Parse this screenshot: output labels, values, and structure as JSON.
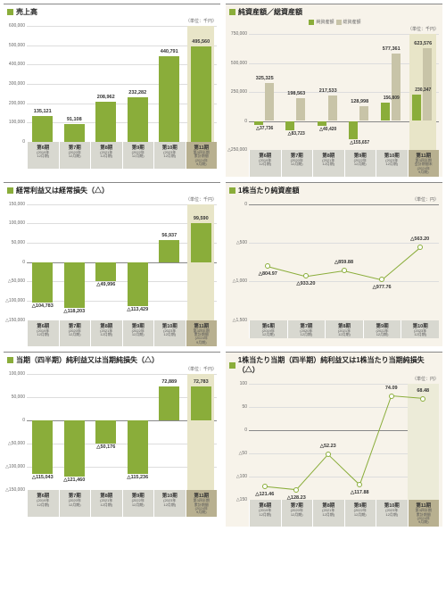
{
  "unit_label": "（単位：千円）",
  "unit_yen": "（単位：円）",
  "colors": {
    "bar": "#8aad3a",
    "bar_light": "#c8c4a8",
    "accent": "#b0a56a",
    "grid": "#d0d0d0",
    "text": "#333",
    "hl_bg": "#ecebd8"
  },
  "periods": [
    {
      "main": "第6期",
      "sub": "(2019年\n12月期)"
    },
    {
      "main": "第7期",
      "sub": "(2020年\n12月期)"
    },
    {
      "main": "第8期",
      "sub": "(2021年\n12月期)"
    },
    {
      "main": "第9期",
      "sub": "(2022年\n12月期)"
    },
    {
      "main": "第10期",
      "sub": "(2023年\n12月期)"
    },
    {
      "main": "第11期",
      "sub": "第3四半期\n累計期間\n(2024年\n9月期)"
    }
  ],
  "periods5": [
    {
      "main": "第6期",
      "sub": "(2019年\n12月期)"
    },
    {
      "main": "第7期",
      "sub": "(2020年\n12月期)"
    },
    {
      "main": "第8期",
      "sub": "(2021年\n12月期)"
    },
    {
      "main": "第9期",
      "sub": "(2022年\n12月期)"
    },
    {
      "main": "第10期",
      "sub": "(2023年\n12月期)"
    }
  ],
  "periods6b": [
    {
      "main": "第6期",
      "sub": "(2019年\n12月期)"
    },
    {
      "main": "第7期",
      "sub": "(2020年\n12月期)"
    },
    {
      "main": "第8期",
      "sub": "(2021年\n12月期)"
    },
    {
      "main": "第9期",
      "sub": "(2022年\n12月期)"
    },
    {
      "main": "第10期",
      "sub": "(2023年\n12月期)"
    },
    {
      "main": "第11期",
      "sub": "第3四半期\n会計期間末\n(2024年\n9月期)"
    }
  ],
  "charts": {
    "sales": {
      "title": "売上高",
      "ymin": 0,
      "ymax": 600000,
      "ystep": 100000,
      "bars": [
        {
          "v": 135121,
          "lbl": "135,121"
        },
        {
          "v": 91108,
          "lbl": "91,108"
        },
        {
          "v": 208962,
          "lbl": "208,962"
        },
        {
          "v": 232282,
          "lbl": "232,282"
        },
        {
          "v": 440791,
          "lbl": "440,791"
        },
        {
          "v": 495560,
          "lbl": "495,560"
        }
      ]
    },
    "assets": {
      "title": "純資産額／総資産額",
      "ymin": -250000,
      "ymax": 750000,
      "ystep": 250000,
      "legend": [
        "純資産額",
        "総資産額"
      ],
      "dual": [
        {
          "a": -37736,
          "al": "△37,736",
          "b": 325325,
          "bl": "325,325"
        },
        {
          "a": -83723,
          "al": "△83,723",
          "b": 198563,
          "bl": "198,563"
        },
        {
          "a": -40420,
          "al": "△40,420",
          "b": 217533,
          "bl": "217,533"
        },
        {
          "a": -155657,
          "al": "△155,657",
          "b": 128998,
          "bl": "128,998"
        },
        {
          "a": 156809,
          "al": "156,809",
          "b": 577361,
          "bl": "577,361"
        },
        {
          "a": 230347,
          "al": "230,347",
          "b": 623576,
          "bl": "623,576"
        }
      ]
    },
    "ordinary": {
      "title": "経常利益又は経常損失（△）",
      "ymin": -150000,
      "ymax": 150000,
      "ystep": 50000,
      "bars": [
        {
          "v": -104783,
          "lbl": "△104,783"
        },
        {
          "v": -118203,
          "lbl": "△118,203"
        },
        {
          "v": -49996,
          "lbl": "△49,996"
        },
        {
          "v": -113429,
          "lbl": "△113,429"
        },
        {
          "v": 56937,
          "lbl": "56,937"
        },
        {
          "v": 99590,
          "lbl": "99,590"
        }
      ]
    },
    "pershare_assets": {
      "title": "1株当たり純資産額",
      "ymin": -1500,
      "ymax": 0,
      "ystep": 500,
      "line": [
        {
          "v": -804.97,
          "lbl": "△804.97"
        },
        {
          "v": -933.2,
          "lbl": "△933.20"
        },
        {
          "v": -859.88,
          "lbl": "△859.88"
        },
        {
          "v": -977.76,
          "lbl": "△977.76"
        },
        {
          "v": -563.2,
          "lbl": "△563.20"
        }
      ]
    },
    "net": {
      "title": "当期（四半期）純利益又は当期純損失（△）",
      "ymin": -150000,
      "ymax": 100000,
      "ystep": 50000,
      "bars": [
        {
          "v": -115043,
          "lbl": "△115,043"
        },
        {
          "v": -121460,
          "lbl": "△121,460"
        },
        {
          "v": -50176,
          "lbl": "△50,176"
        },
        {
          "v": -115236,
          "lbl": "△115,236"
        },
        {
          "v": 72889,
          "lbl": "72,889"
        },
        {
          "v": 72783,
          "lbl": "72,783"
        }
      ]
    },
    "pershare_net": {
      "title": "1株当たり当期（四半期）純利益又は1株当たり当期純損失（△）",
      "ymin": -150,
      "ymax": 100,
      "ystep": 50,
      "line": [
        {
          "v": -121.46,
          "lbl": "△121.46"
        },
        {
          "v": -128.23,
          "lbl": "△128.23"
        },
        {
          "v": -52.23,
          "lbl": "△52.23"
        },
        {
          "v": -117.88,
          "lbl": "△117.88"
        },
        {
          "v": 74.09,
          "lbl": "74.09"
        },
        {
          "v": 68.48,
          "lbl": "68.48"
        }
      ]
    }
  }
}
